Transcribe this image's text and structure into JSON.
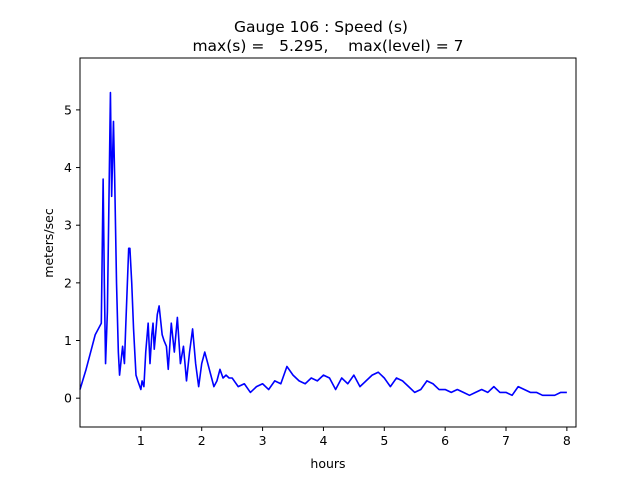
{
  "chart_data": {
    "type": "line",
    "title_line1": "Gauge 106 : Speed (s)",
    "title_line2": "max(s) =   5.295,    max(level) = 7",
    "xlabel": "hours",
    "ylabel": "meters/sec",
    "xlim": [
      0.0,
      8.15
    ],
    "ylim": [
      -0.5,
      5.9
    ],
    "xticks": [
      1,
      2,
      3,
      4,
      5,
      6,
      7,
      8
    ],
    "xtick_labels": [
      "1",
      "2",
      "3",
      "4",
      "5",
      "6",
      "7",
      "8"
    ],
    "yticks": [
      0,
      1,
      2,
      3,
      4,
      5
    ],
    "ytick_labels": [
      "0",
      "1",
      "2",
      "3",
      "4",
      "5"
    ],
    "grid": false,
    "series": [
      {
        "color": "#0000ff",
        "x": [
          0.0,
          0.1,
          0.2,
          0.25,
          0.3,
          0.35,
          0.38,
          0.4,
          0.42,
          0.45,
          0.47,
          0.5,
          0.52,
          0.55,
          0.57,
          0.6,
          0.63,
          0.65,
          0.68,
          0.7,
          0.73,
          0.75,
          0.8,
          0.82,
          0.85,
          0.88,
          0.92,
          0.95,
          1.0,
          1.02,
          1.05,
          1.08,
          1.12,
          1.15,
          1.18,
          1.2,
          1.22,
          1.25,
          1.27,
          1.3,
          1.35,
          1.38,
          1.42,
          1.45,
          1.5,
          1.55,
          1.6,
          1.65,
          1.7,
          1.75,
          1.8,
          1.85,
          1.9,
          1.95,
          2.0,
          2.05,
          2.1,
          2.15,
          2.2,
          2.25,
          2.3,
          2.35,
          2.4,
          2.45,
          2.5,
          2.6,
          2.7,
          2.8,
          2.9,
          3.0,
          3.1,
          3.2,
          3.3,
          3.4,
          3.5,
          3.6,
          3.7,
          3.8,
          3.9,
          4.0,
          4.1,
          4.2,
          4.3,
          4.4,
          4.5,
          4.6,
          4.7,
          4.8,
          4.9,
          5.0,
          5.1,
          5.2,
          5.3,
          5.4,
          5.5,
          5.6,
          5.7,
          5.8,
          5.9,
          6.0,
          6.1,
          6.2,
          6.3,
          6.4,
          6.5,
          6.6,
          6.7,
          6.8,
          6.9,
          7.0,
          7.1,
          7.2,
          7.3,
          7.4,
          7.5,
          7.6,
          7.7,
          7.8,
          7.9,
          8.0
        ],
        "y": [
          0.15,
          0.5,
          0.9,
          1.1,
          1.2,
          1.3,
          3.8,
          2.0,
          0.6,
          1.5,
          3.0,
          5.3,
          3.5,
          4.8,
          3.8,
          2.0,
          0.8,
          0.4,
          0.7,
          0.9,
          0.6,
          1.2,
          2.6,
          2.6,
          2.0,
          1.2,
          0.4,
          0.3,
          0.15,
          0.3,
          0.2,
          0.8,
          1.3,
          0.6,
          1.1,
          1.3,
          0.85,
          1.2,
          1.45,
          1.6,
          1.1,
          1.0,
          0.9,
          0.5,
          1.3,
          0.8,
          1.4,
          0.6,
          0.9,
          0.3,
          0.8,
          1.2,
          0.6,
          0.2,
          0.6,
          0.8,
          0.6,
          0.4,
          0.2,
          0.3,
          0.5,
          0.35,
          0.4,
          0.35,
          0.35,
          0.2,
          0.25,
          0.1,
          0.2,
          0.25,
          0.15,
          0.3,
          0.25,
          0.55,
          0.4,
          0.3,
          0.25,
          0.35,
          0.3,
          0.4,
          0.35,
          0.15,
          0.35,
          0.25,
          0.4,
          0.2,
          0.3,
          0.4,
          0.45,
          0.35,
          0.2,
          0.35,
          0.3,
          0.2,
          0.1,
          0.15,
          0.3,
          0.25,
          0.15,
          0.15,
          0.1,
          0.15,
          0.1,
          0.05,
          0.1,
          0.15,
          0.1,
          0.2,
          0.1,
          0.1,
          0.05,
          0.2,
          0.15,
          0.1,
          0.1,
          0.05,
          0.05,
          0.05,
          0.1,
          0.1
        ]
      }
    ]
  }
}
